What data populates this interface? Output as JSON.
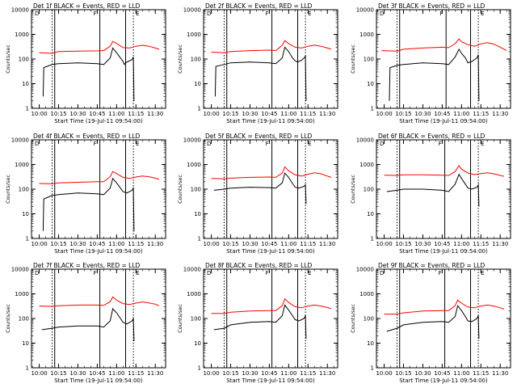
{
  "page": {
    "title_template": "Det {det}f BLACK = Events, RED = LLD",
    "ylabel": "Counts/sec",
    "xlabel": "Start Time (19-Jul-11 09:54:00)",
    "markers": [
      "D",
      "F",
      "E"
    ]
  },
  "chart_data": [
    {
      "type": "line",
      "detector": "1f",
      "title": "Det 1f BLACK = Events, RED = LLD",
      "xlabel": "Start Time (19-Jul-11 09:54:00)",
      "ylabel": "Counts/sec",
      "xlim": [
        "09:54",
        "11:38"
      ],
      "ylim": [
        1,
        10000
      ],
      "yscale": "log",
      "x_ticks": [
        "10:00",
        "10:15",
        "10:30",
        "10:45",
        "11:00",
        "11:15",
        "11:30"
      ],
      "y_ticks": [
        "1",
        "10",
        "100",
        "1000",
        "10000"
      ],
      "solid_vlines": [
        "10:12",
        "10:47",
        "11:07"
      ],
      "dotted_vlines": [
        "10:10",
        "11:13"
      ],
      "series": [
        {
          "color": "#ff0000",
          "x": [
            "10:00",
            "10:10",
            "10:15",
            "10:30",
            "10:45",
            "10:50",
            "10:55",
            "10:57",
            "11:00",
            "11:05",
            "11:10",
            "11:15",
            "11:20",
            "11:25",
            "11:30",
            "11:33"
          ],
          "values": [
            180,
            170,
            200,
            210,
            215,
            220,
            330,
            520,
            430,
            290,
            280,
            330,
            360,
            330,
            280,
            250
          ]
        },
        {
          "color": "#000000",
          "x": [
            "10:03",
            "10:03.5",
            "10:10",
            "10:15",
            "10:30",
            "10:45",
            "10:50",
            "10:55",
            "10:57",
            "11:00",
            "11:03",
            "11:05",
            "11:06",
            "11:07",
            "11:09",
            "11:12",
            "11:13",
            "11:13.5"
          ],
          "values": [
            3,
            45,
            60,
            65,
            70,
            65,
            60,
            110,
            280,
            180,
            110,
            80,
            60,
            70,
            80,
            95,
            120,
            2
          ]
        }
      ]
    },
    {
      "type": "line",
      "detector": "2f",
      "title": "Det 2f BLACK = Events, RED = LLD",
      "xlabel": "Start Time (19-Jul-11 09:54:00)",
      "ylabel": "Counts/sec",
      "xlim": [
        "09:54",
        "11:38"
      ],
      "ylim": [
        1,
        10000
      ],
      "yscale": "log",
      "x_ticks": [
        "10:00",
        "10:15",
        "10:30",
        "10:45",
        "11:00",
        "11:15",
        "11:30"
      ],
      "y_ticks": [
        "1",
        "10",
        "100",
        "1000",
        "10000"
      ],
      "solid_vlines": [
        "10:12",
        "10:47",
        "11:07"
      ],
      "dotted_vlines": [
        "10:10",
        "11:13"
      ],
      "series": [
        {
          "color": "#ff0000",
          "x": [
            "10:00",
            "10:10",
            "10:15",
            "10:30",
            "10:45",
            "10:50",
            "10:55",
            "10:57",
            "11:00",
            "11:05",
            "11:10",
            "11:15",
            "11:20",
            "11:25",
            "11:30",
            "11:33"
          ],
          "values": [
            190,
            180,
            200,
            220,
            230,
            220,
            360,
            560,
            420,
            300,
            280,
            330,
            370,
            330,
            280,
            250
          ]
        },
        {
          "color": "#000000",
          "x": [
            "10:03",
            "10:03.5",
            "10:10",
            "10:15",
            "10:30",
            "10:45",
            "10:50",
            "10:55",
            "10:57",
            "11:00",
            "11:03",
            "11:05",
            "11:07",
            "11:10",
            "11:12",
            "11:13",
            "11:13.5"
          ],
          "values": [
            3,
            50,
            60,
            70,
            75,
            70,
            65,
            110,
            300,
            200,
            110,
            85,
            75,
            90,
            110,
            130,
            2
          ]
        }
      ]
    },
    {
      "type": "line",
      "detector": "3f",
      "title": "Det 3f BLACK = Events, RED = LLD",
      "xlabel": "Start Time (19-Jul-11 09:54:00)",
      "ylabel": "Counts/sec",
      "xlim": [
        "09:54",
        "11:38"
      ],
      "ylim": [
        1,
        10000
      ],
      "yscale": "log",
      "x_ticks": [
        "10:00",
        "10:15",
        "10:30",
        "10:45",
        "11:00",
        "11:15",
        "11:30"
      ],
      "y_ticks": [
        "1",
        "10",
        "100",
        "1000",
        "10000"
      ],
      "solid_vlines": [
        "10:12",
        "10:48",
        "11:07"
      ],
      "dotted_vlines": [
        "10:10",
        "11:13"
      ],
      "series": [
        {
          "color": "#ff0000",
          "x": [
            "09:58",
            "10:10",
            "10:15",
            "10:30",
            "10:45",
            "10:50",
            "10:55",
            "10:58",
            "11:00",
            "11:05",
            "11:10",
            "11:15",
            "11:20",
            "11:25",
            "11:30",
            "11:35"
          ],
          "values": [
            220,
            210,
            250,
            280,
            300,
            290,
            420,
            650,
            500,
            380,
            330,
            410,
            460,
            400,
            300,
            220
          ]
        },
        {
          "color": "#000000",
          "x": [
            "10:04",
            "10:04.5",
            "10:10",
            "10:15",
            "10:30",
            "10:45",
            "10:50",
            "10:55",
            "10:58",
            "11:00",
            "11:03",
            "11:05",
            "11:08",
            "11:12",
            "11:13",
            "11:13.5"
          ],
          "values": [
            2,
            45,
            55,
            60,
            70,
            65,
            60,
            120,
            250,
            170,
            110,
            70,
            80,
            110,
            150,
            2
          ]
        }
      ]
    },
    {
      "type": "line",
      "detector": "4f",
      "title": "Det 4f BLACK = Events, RED = LLD",
      "xlabel": "Start Time (19-Jul-11 09:54:00)",
      "ylabel": "Counts/sec",
      "xlim": [
        "09:54",
        "11:38"
      ],
      "ylim": [
        1,
        10000
      ],
      "yscale": "log",
      "x_ticks": [
        "10:00",
        "10:15",
        "10:30",
        "10:45",
        "11:00",
        "11:15",
        "11:30"
      ],
      "y_ticks": [
        "1",
        "10",
        "100",
        "1000",
        "10000"
      ],
      "solid_vlines": [
        "10:12",
        "10:47",
        "11:07"
      ],
      "dotted_vlines": [
        "10:10",
        "11:13"
      ],
      "series": [
        {
          "color": "#ff0000",
          "x": [
            "10:00",
            "10:10",
            "10:15",
            "10:30",
            "10:45",
            "10:50",
            "10:55",
            "10:57",
            "11:00",
            "11:05",
            "11:10",
            "11:15",
            "11:20",
            "11:25",
            "11:30",
            "11:33"
          ],
          "values": [
            170,
            165,
            180,
            190,
            200,
            200,
            320,
            520,
            430,
            300,
            270,
            310,
            340,
            320,
            280,
            250
          ]
        },
        {
          "color": "#000000",
          "x": [
            "10:03",
            "10:03.5",
            "10:10",
            "10:15",
            "10:30",
            "10:45",
            "10:50",
            "10:55",
            "10:57",
            "11:00",
            "11:03",
            "11:05",
            "11:08",
            "11:12",
            "11:13",
            "11:13.5"
          ],
          "values": [
            2,
            40,
            55,
            60,
            70,
            65,
            60,
            110,
            270,
            180,
            110,
            80,
            70,
            90,
            110,
            2
          ]
        }
      ]
    },
    {
      "type": "line",
      "detector": "5f",
      "title": "Det 5f BLACK = Events, RED = LLD",
      "xlabel": "Start Time (19-Jul-11 09:54:00)",
      "ylabel": "Counts/sec",
      "xlim": [
        "09:54",
        "11:38"
      ],
      "ylim": [
        1,
        10000
      ],
      "yscale": "log",
      "x_ticks": [
        "10:00",
        "10:15",
        "10:30",
        "10:45",
        "11:00",
        "11:15",
        "11:30"
      ],
      "y_ticks": [
        "1",
        "10",
        "100",
        "1000",
        "10000"
      ],
      "solid_vlines": [
        "10:12",
        "10:47",
        "11:07"
      ],
      "dotted_vlines": [
        "10:10",
        "11:13"
      ],
      "series": [
        {
          "color": "#ff0000",
          "x": [
            "10:00",
            "10:10",
            "10:15",
            "10:30",
            "10:45",
            "10:50",
            "10:55",
            "10:57",
            "11:00",
            "11:05",
            "11:10",
            "11:15",
            "11:20",
            "11:25",
            "11:30",
            "11:33"
          ],
          "values": [
            270,
            260,
            280,
            300,
            310,
            300,
            450,
            800,
            560,
            380,
            340,
            400,
            460,
            420,
            340,
            300
          ]
        },
        {
          "color": "#000000",
          "x": [
            "10:02",
            "10:10",
            "10:15",
            "10:30",
            "10:45",
            "10:50",
            "10:55",
            "10:57",
            "11:00",
            "11:03",
            "11:05",
            "11:08",
            "11:12",
            "11:13",
            "11:13.5"
          ],
          "values": [
            90,
            100,
            110,
            120,
            115,
            110,
            180,
            450,
            300,
            170,
            120,
            110,
            130,
            150,
            25
          ]
        }
      ]
    },
    {
      "type": "line",
      "detector": "6f",
      "title": "Det 6f BLACK = Events, RED = LLD",
      "xlabel": "Start Time (19-Jul-11 09:54:00)",
      "ylabel": "Counts/sec",
      "xlim": [
        "09:54",
        "11:38"
      ],
      "ylim": [
        1,
        10000
      ],
      "yscale": "log",
      "x_ticks": [
        "10:00",
        "10:15",
        "10:30",
        "10:45",
        "11:00",
        "11:15",
        "11:30"
      ],
      "y_ticks": [
        "1",
        "10",
        "100",
        "1000",
        "10000"
      ],
      "solid_vlines": [
        "10:12",
        "10:47",
        "11:07"
      ],
      "dotted_vlines": [
        "10:10",
        "11:13"
      ],
      "series": [
        {
          "color": "#ff0000",
          "x": [
            "10:00",
            "10:10",
            "10:15",
            "10:30",
            "10:45",
            "10:50",
            "10:55",
            "10:58",
            "11:00",
            "11:05",
            "11:10",
            "11:15",
            "11:20",
            "11:25",
            "11:30",
            "11:33"
          ],
          "values": [
            370,
            360,
            380,
            380,
            370,
            360,
            520,
            900,
            650,
            450,
            390,
            430,
            460,
            420,
            360,
            330
          ]
        },
        {
          "color": "#000000",
          "x": [
            "10:02",
            "10:10",
            "10:15",
            "10:30",
            "10:45",
            "10:50",
            "10:55",
            "10:58",
            "11:00",
            "11:03",
            "11:05",
            "11:08",
            "11:12",
            "11:13",
            "11:13.5"
          ],
          "values": [
            80,
            90,
            100,
            100,
            90,
            80,
            160,
            400,
            270,
            160,
            110,
            100,
            120,
            150,
            20
          ]
        }
      ]
    },
    {
      "type": "line",
      "detector": "7f",
      "title": "Det 7f BLACK = Events, RED = LLD",
      "xlabel": "Start Time (19-Jul-11 09:54:00)",
      "ylabel": "Counts/sec",
      "xlim": [
        "09:54",
        "11:38"
      ],
      "ylim": [
        1,
        10000
      ],
      "yscale": "log",
      "x_ticks": [
        "10:00",
        "10:15",
        "10:30",
        "10:45",
        "11:00",
        "11:15",
        "11:30"
      ],
      "y_ticks": [
        "1",
        "10",
        "100",
        "1000",
        "10000"
      ],
      "solid_vlines": [
        "10:12",
        "10:47",
        "11:07"
      ],
      "dotted_vlines": [
        "10:10",
        "11:13"
      ],
      "series": [
        {
          "color": "#ff0000",
          "x": [
            "10:00",
            "10:10",
            "10:15",
            "10:30",
            "10:45",
            "10:50",
            "10:55",
            "10:57",
            "11:00",
            "11:05",
            "11:10",
            "11:15",
            "11:20",
            "11:25",
            "11:30",
            "11:33"
          ],
          "values": [
            320,
            310,
            330,
            350,
            350,
            340,
            480,
            750,
            560,
            400,
            370,
            420,
            470,
            430,
            380,
            330
          ]
        },
        {
          "color": "#000000",
          "x": [
            "10:02",
            "10:10",
            "10:15",
            "10:30",
            "10:45",
            "10:50",
            "10:55",
            "10:57",
            "11:00",
            "11:03",
            "11:05",
            "11:08",
            "11:12",
            "11:13",
            "11:13.5"
          ],
          "values": [
            35,
            40,
            45,
            50,
            50,
            45,
            80,
            250,
            170,
            100,
            70,
            60,
            80,
            100,
            12
          ]
        }
      ]
    },
    {
      "type": "line",
      "detector": "8f",
      "title": "Det 8f BLACK = Events, RED = LLD",
      "xlabel": "Start Time (19-Jul-11 09:54:00)",
      "ylabel": "Counts/sec",
      "xlim": [
        "09:54",
        "11:38"
      ],
      "ylim": [
        1,
        10000
      ],
      "yscale": "log",
      "x_ticks": [
        "10:00",
        "10:15",
        "10:30",
        "10:45",
        "11:00",
        "11:15",
        "11:30"
      ],
      "y_ticks": [
        "1",
        "10",
        "100",
        "1000",
        "10000"
      ],
      "solid_vlines": [
        "10:12",
        "10:47",
        "11:07"
      ],
      "dotted_vlines": [
        "10:10",
        "11:13"
      ],
      "series": [
        {
          "color": "#ff0000",
          "x": [
            "10:00",
            "10:10",
            "10:15",
            "10:30",
            "10:45",
            "10:50",
            "10:55",
            "10:57",
            "11:00",
            "11:05",
            "11:10",
            "11:15",
            "11:20",
            "11:25",
            "11:30",
            "11:33"
          ],
          "values": [
            160,
            160,
            180,
            200,
            210,
            210,
            330,
            620,
            450,
            300,
            270,
            320,
            350,
            320,
            280,
            250
          ]
        },
        {
          "color": "#000000",
          "x": [
            "10:02",
            "10:10",
            "10:15",
            "10:30",
            "10:45",
            "10:50",
            "10:55",
            "10:57",
            "11:00",
            "11:03",
            "11:05",
            "11:08",
            "11:12",
            "11:13",
            "11:13.5"
          ],
          "values": [
            35,
            40,
            55,
            70,
            75,
            70,
            130,
            350,
            220,
            130,
            90,
            80,
            100,
            130,
            15
          ]
        }
      ]
    },
    {
      "type": "line",
      "detector": "9f",
      "title": "Det 9f BLACK = Events, RED = LLD",
      "xlabel": "Start Time (19-Jul-11 09:54:00)",
      "ylabel": "Counts/sec",
      "xlim": [
        "09:54",
        "11:38"
      ],
      "ylim": [
        1,
        10000
      ],
      "yscale": "log",
      "x_ticks": [
        "10:00",
        "10:15",
        "10:30",
        "10:45",
        "11:00",
        "11:15",
        "11:30"
      ],
      "y_ticks": [
        "1",
        "10",
        "100",
        "1000",
        "10000"
      ],
      "solid_vlines": [
        "10:12",
        "10:47",
        "11:07"
      ],
      "dotted_vlines": [
        "10:10",
        "11:13"
      ],
      "series": [
        {
          "color": "#ff0000",
          "x": [
            "10:00",
            "10:10",
            "10:15",
            "10:30",
            "10:45",
            "10:50",
            "10:55",
            "10:57",
            "11:00",
            "11:05",
            "11:10",
            "11:15",
            "11:20",
            "11:25",
            "11:30",
            "11:33"
          ],
          "values": [
            150,
            150,
            170,
            200,
            210,
            210,
            330,
            560,
            420,
            290,
            270,
            320,
            350,
            320,
            270,
            240
          ]
        },
        {
          "color": "#000000",
          "x": [
            "10:02",
            "10:10",
            "10:15",
            "10:30",
            "10:45",
            "10:50",
            "10:55",
            "10:57",
            "11:00",
            "11:03",
            "11:05",
            "11:08",
            "11:12",
            "11:13",
            "11:13.5"
          ],
          "values": [
            30,
            40,
            55,
            70,
            75,
            70,
            120,
            330,
            210,
            120,
            80,
            75,
            100,
            130,
            15
          ]
        }
      ]
    }
  ]
}
